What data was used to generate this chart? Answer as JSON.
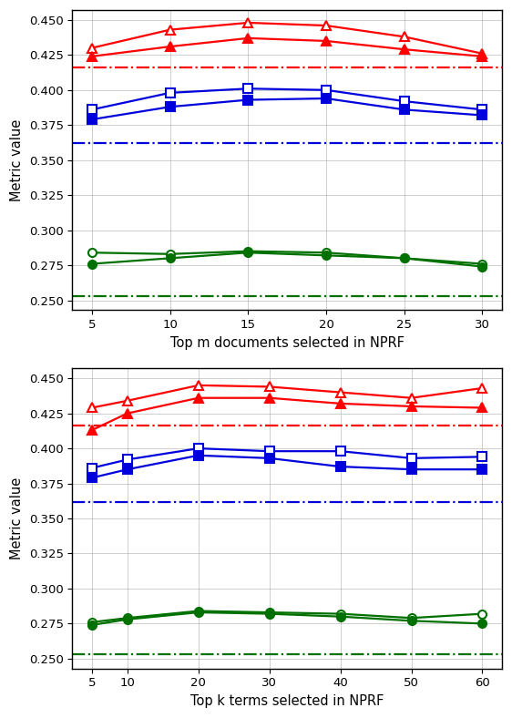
{
  "top_plot": {
    "xlabel": "Top m documents selected in NPRF",
    "x": [
      5,
      10,
      15,
      20,
      25,
      30
    ],
    "red_open_triangle": [
      0.43,
      0.443,
      0.448,
      0.446,
      0.438,
      0.426
    ],
    "red_filled_triangle": [
      0.424,
      0.431,
      0.437,
      0.435,
      0.429,
      0.424
    ],
    "red_baseline": 0.416,
    "blue_open_square": [
      0.386,
      0.398,
      0.401,
      0.4,
      0.392,
      0.386
    ],
    "blue_filled_square": [
      0.379,
      0.388,
      0.393,
      0.394,
      0.386,
      0.382
    ],
    "blue_baseline": 0.362,
    "green_open_circle": [
      0.284,
      0.283,
      0.285,
      0.284,
      0.28,
      0.276
    ],
    "green_filled_circle": [
      0.276,
      0.28,
      0.284,
      0.282,
      0.28,
      0.274
    ],
    "green_baseline": 0.253
  },
  "bottom_plot": {
    "xlabel": "Top k terms selected in NPRF",
    "x": [
      5,
      10,
      20,
      30,
      40,
      50,
      60
    ],
    "red_open_triangle": [
      0.429,
      0.434,
      0.445,
      0.444,
      0.44,
      0.436,
      0.443
    ],
    "red_filled_triangle": [
      0.413,
      0.425,
      0.436,
      0.436,
      0.432,
      0.43,
      0.429
    ],
    "red_baseline": 0.416,
    "blue_open_square": [
      0.386,
      0.392,
      0.4,
      0.398,
      0.398,
      0.393,
      0.394
    ],
    "blue_filled_square": [
      0.379,
      0.385,
      0.395,
      0.393,
      0.387,
      0.385,
      0.385
    ],
    "blue_baseline": 0.362,
    "green_open_circle": [
      0.276,
      0.279,
      0.284,
      0.283,
      0.282,
      0.279,
      0.282
    ],
    "green_filled_circle": [
      0.274,
      0.278,
      0.283,
      0.282,
      0.28,
      0.277,
      0.275
    ],
    "green_baseline": 0.253
  },
  "ylabel": "Metric value",
  "ylim": [
    0.243,
    0.457
  ],
  "yticks": [
    0.25,
    0.275,
    0.3,
    0.325,
    0.35,
    0.375,
    0.4,
    0.425,
    0.45
  ],
  "red_color": "#ff0000",
  "blue_color": "#0000dd",
  "green_color": "#007000",
  "linewidth": 1.6,
  "markersize": 6.5
}
